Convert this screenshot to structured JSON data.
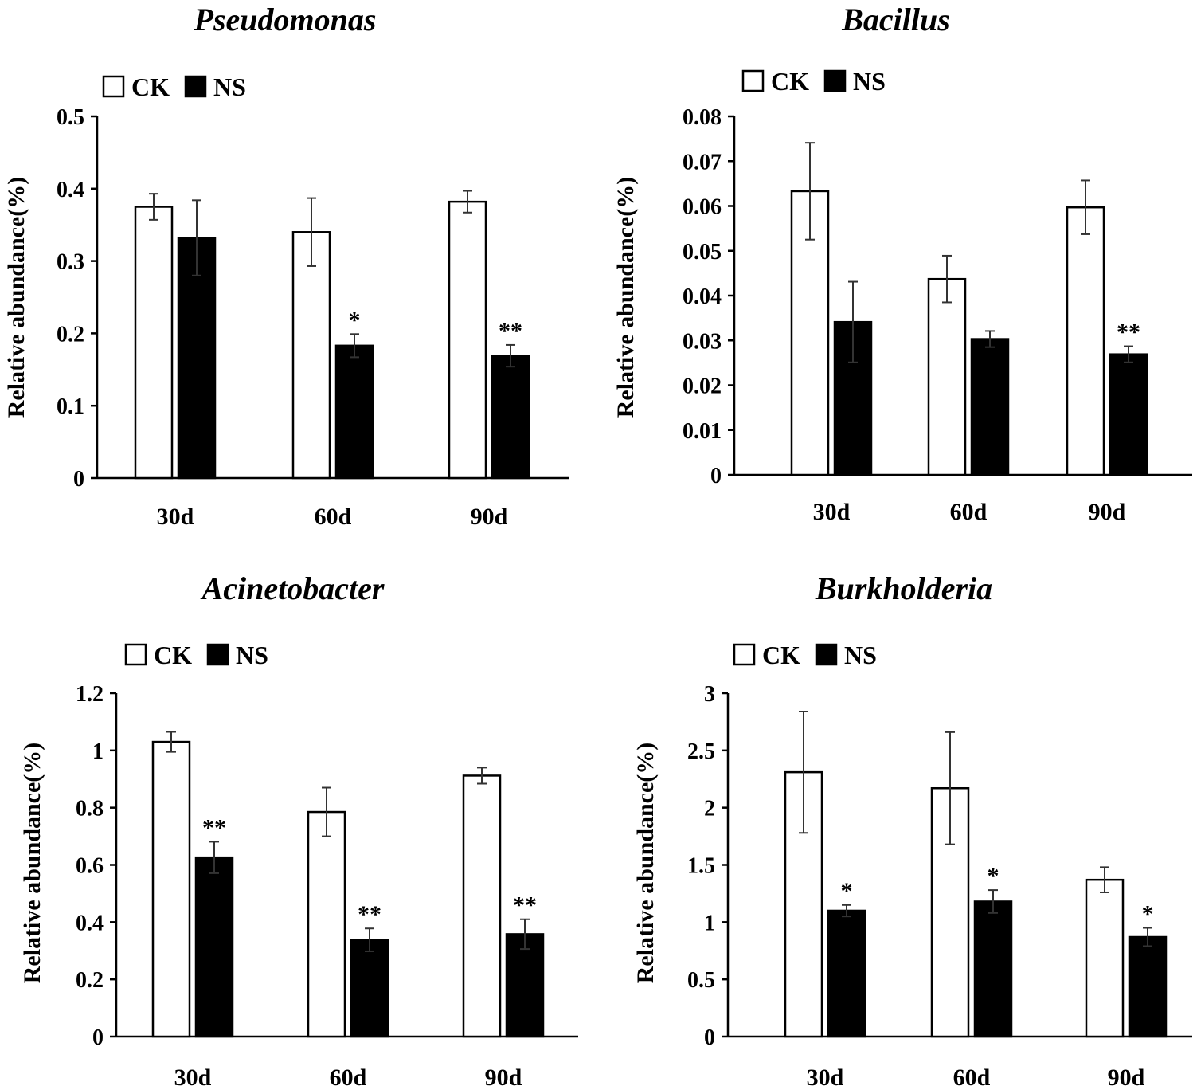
{
  "figure": {
    "colors": {
      "CK": "#ffffff",
      "NS": "#000000",
      "axis": "#000000",
      "error": "#333333"
    }
  },
  "chart_data": [
    {
      "type": "bar",
      "title": "Pseudomonas",
      "ylabel": "Relative abundance(%)",
      "xlabel": "",
      "categories": [
        "30d",
        "60d",
        "90d"
      ],
      "ylim": [
        0,
        0.5
      ],
      "yticks": [
        0,
        0.1,
        0.2,
        0.3,
        0.4,
        0.5
      ],
      "ytick_labels": [
        "0",
        "0.1",
        "0.2",
        "0.3",
        "0.4",
        "0.5"
      ],
      "legend": [
        "CK",
        "NS"
      ],
      "legend_position": "top-left",
      "grid": false,
      "series": [
        {
          "name": "CK",
          "values": [
            0.375,
            0.34,
            0.382
          ],
          "errors": [
            0.018,
            0.047,
            0.015
          ],
          "significance": [
            "",
            "",
            ""
          ]
        },
        {
          "name": "NS",
          "values": [
            0.332,
            0.183,
            0.169
          ],
          "errors": [
            0.052,
            0.016,
            0.015
          ],
          "significance": [
            "",
            "*",
            "**"
          ]
        }
      ]
    },
    {
      "type": "bar",
      "title": "Bacillus",
      "ylabel": "Relative abundance(%)",
      "xlabel": "",
      "categories": [
        "30d",
        "60d",
        "90d"
      ],
      "ylim": [
        0,
        0.08
      ],
      "yticks": [
        0,
        0.01,
        0.02,
        0.03,
        0.04,
        0.05,
        0.06,
        0.07,
        0.08
      ],
      "ytick_labels": [
        "0",
        "0.01",
        "0.02",
        "0.03",
        "0.04",
        "0.05",
        "0.06",
        "0.07",
        "0.08"
      ],
      "legend": [
        "CK",
        "NS"
      ],
      "legend_position": "top-left",
      "grid": false,
      "series": [
        {
          "name": "CK",
          "values": [
            0.0633,
            0.0437,
            0.0597
          ],
          "errors": [
            0.0108,
            0.0052,
            0.006
          ],
          "significance": [
            "",
            "",
            ""
          ]
        },
        {
          "name": "NS",
          "values": [
            0.0341,
            0.0303,
            0.0269
          ],
          "errors": [
            0.009,
            0.0018,
            0.0018
          ],
          "significance": [
            "",
            "",
            "**"
          ]
        }
      ]
    },
    {
      "type": "bar",
      "title": "Acinetobacter",
      "ylabel": "Relative abundance(%)",
      "xlabel": "",
      "categories": [
        "30d",
        "60d",
        "90d"
      ],
      "ylim": [
        0,
        1.2
      ],
      "yticks": [
        0,
        0.2,
        0.4,
        0.6,
        0.8,
        1.0,
        1.2
      ],
      "ytick_labels": [
        "0",
        "0.2",
        "0.4",
        "0.6",
        "0.8",
        "1",
        "1.2"
      ],
      "legend": [
        "CK",
        "NS"
      ],
      "legend_position": "top-left",
      "grid": false,
      "series": [
        {
          "name": "CK",
          "values": [
            1.03,
            0.785,
            0.912
          ],
          "errors": [
            0.035,
            0.085,
            0.028
          ],
          "significance": [
            "",
            "",
            ""
          ]
        },
        {
          "name": "NS",
          "values": [
            0.626,
            0.338,
            0.358
          ],
          "errors": [
            0.055,
            0.04,
            0.052
          ],
          "significance": [
            "**",
            "**",
            "**"
          ]
        }
      ]
    },
    {
      "type": "bar",
      "title": "Burkholderia",
      "ylabel": "Relative abundance(%)",
      "xlabel": "",
      "categories": [
        "30d",
        "60d",
        "90d"
      ],
      "ylim": [
        0,
        3
      ],
      "yticks": [
        0,
        0.5,
        1,
        1.5,
        2,
        2.5,
        3
      ],
      "ytick_labels": [
        "0",
        "0.5",
        "1",
        "1.5",
        "2",
        "2.5",
        "3"
      ],
      "legend": [
        "CK",
        "NS"
      ],
      "legend_position": "top-left",
      "grid": false,
      "series": [
        {
          "name": "CK",
          "values": [
            2.31,
            2.17,
            1.37
          ],
          "errors": [
            0.53,
            0.49,
            0.11
          ],
          "significance": [
            "",
            "",
            ""
          ]
        },
        {
          "name": "NS",
          "values": [
            1.1,
            1.18,
            0.87
          ],
          "errors": [
            0.05,
            0.1,
            0.08
          ],
          "significance": [
            "*",
            "*",
            "*"
          ]
        }
      ]
    }
  ]
}
